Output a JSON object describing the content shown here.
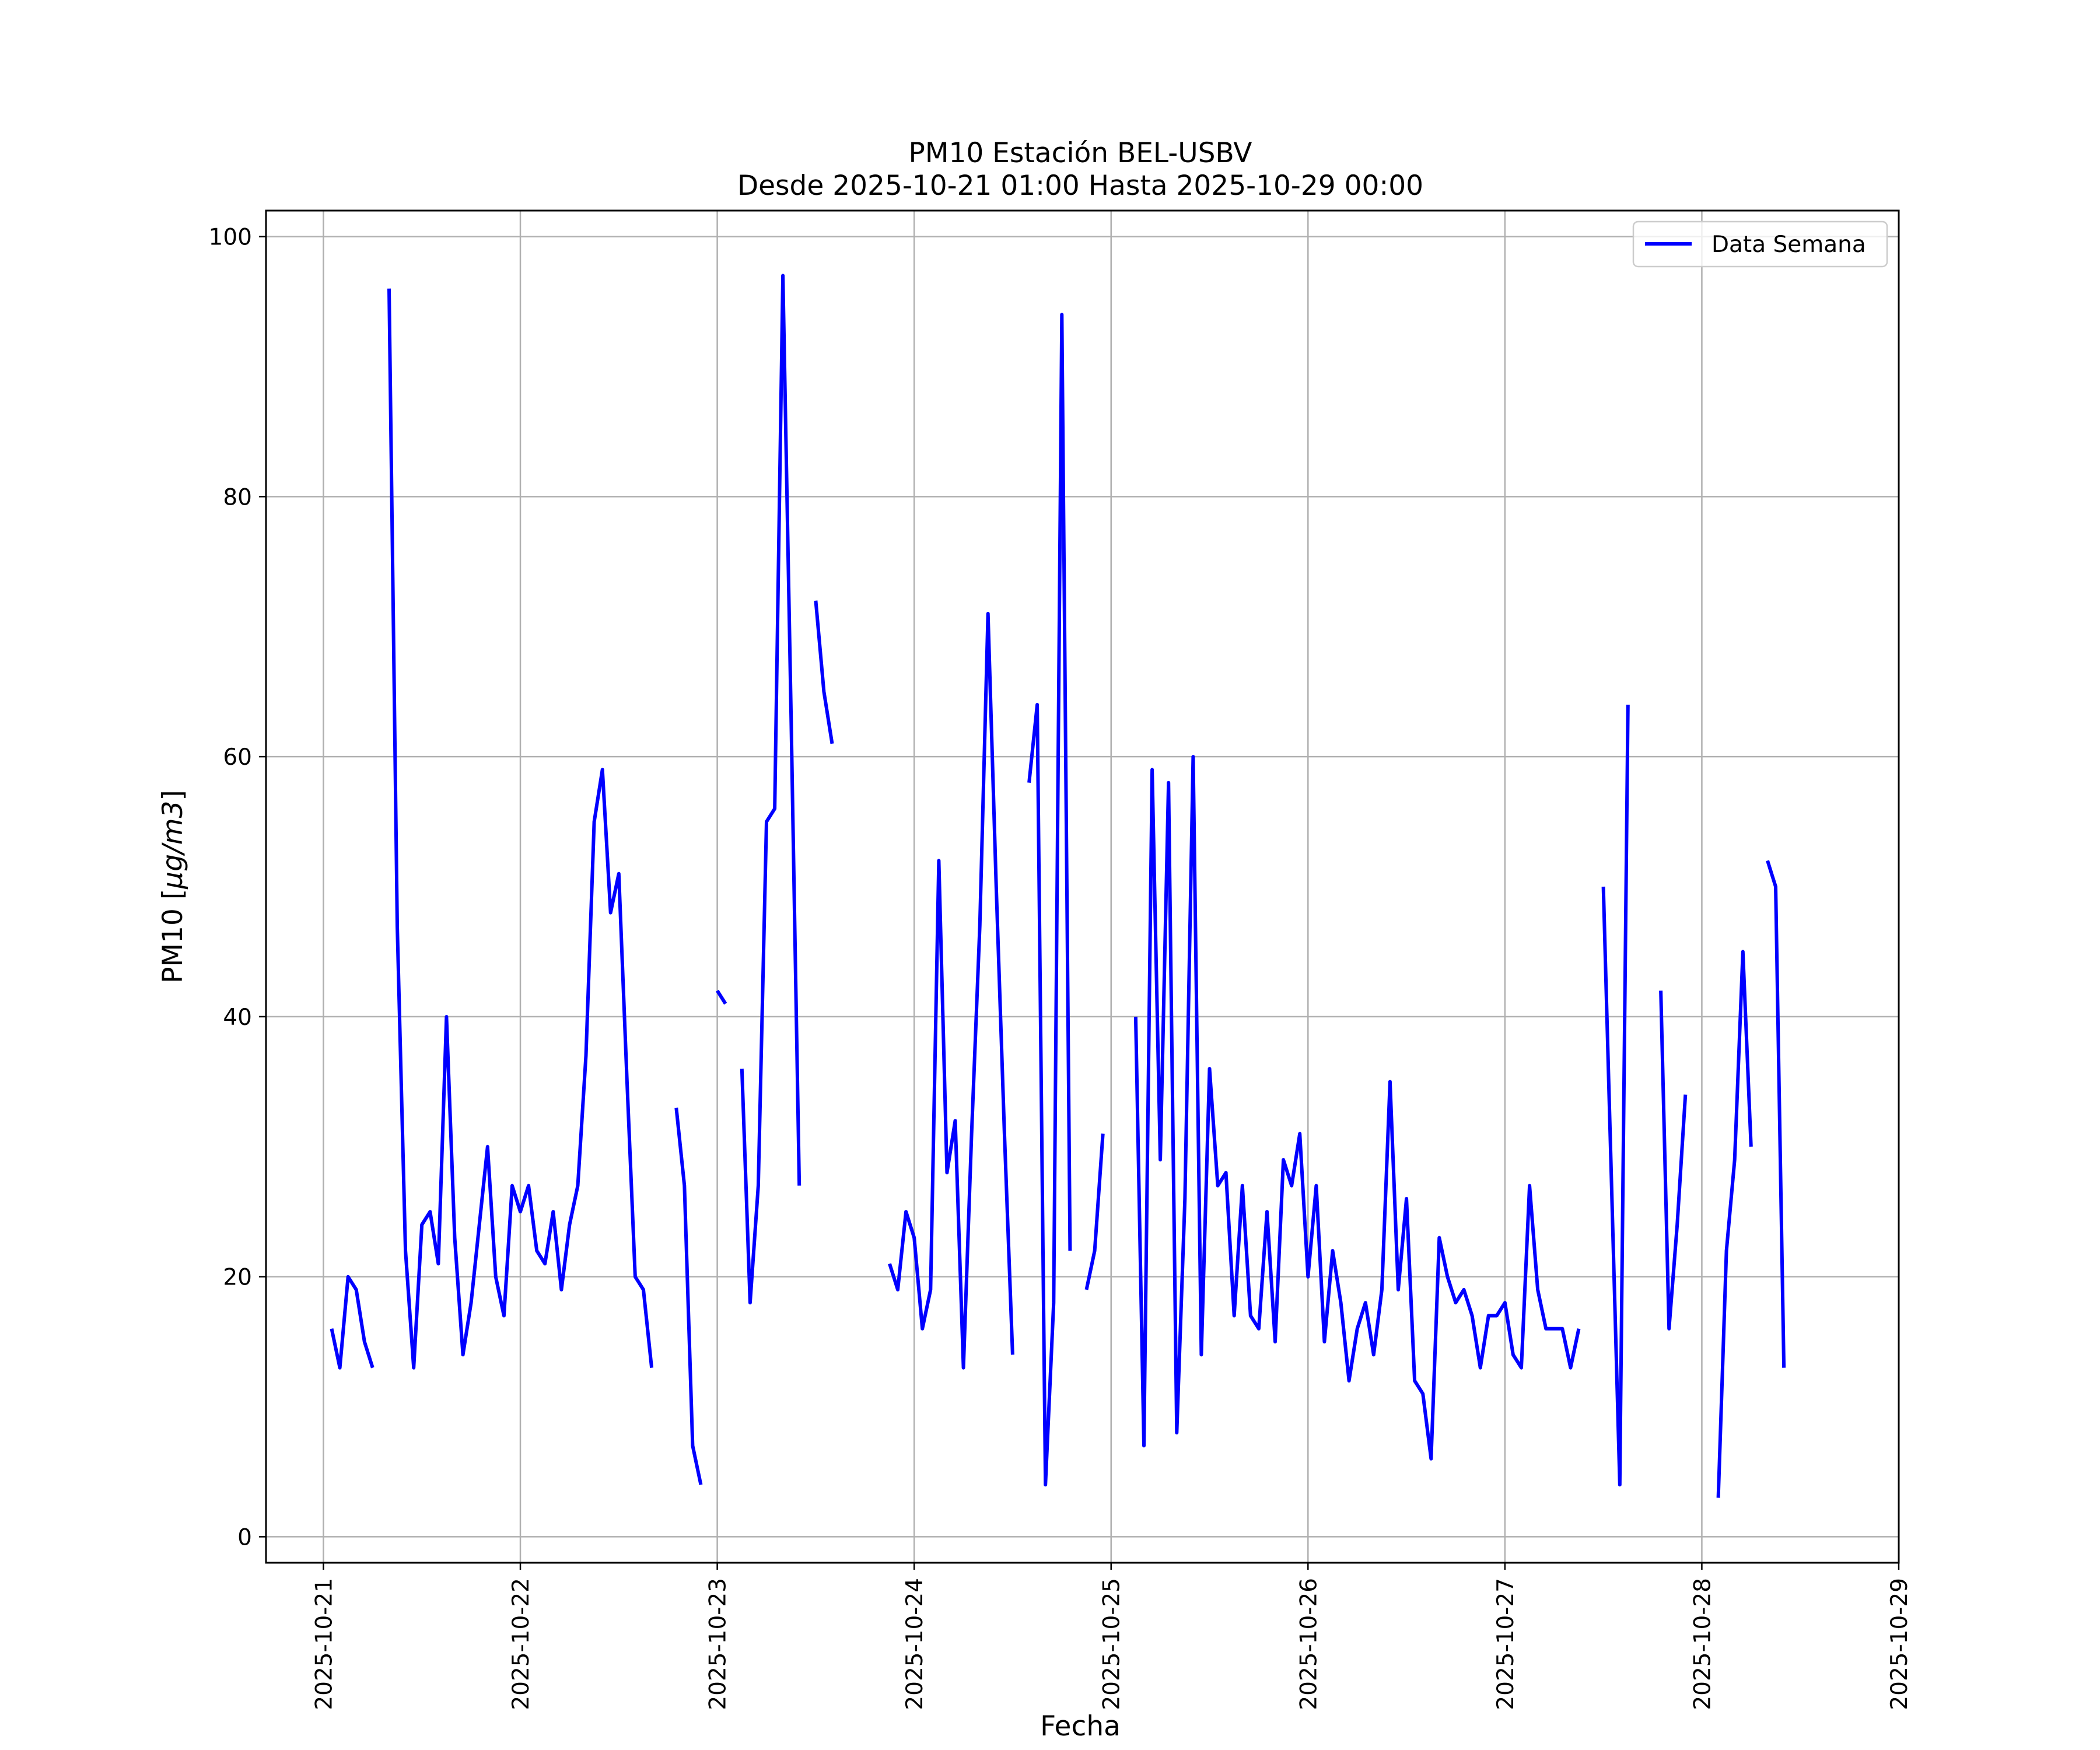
{
  "chart_data": {
    "type": "line",
    "title": "PM10 Estación BEL-USBV",
    "subtitle": "Desde 2025-10-21 01:00 Hasta 2025-10-29 00:00",
    "xlabel": "Fecha",
    "ylabel_prefix": "PM10 [",
    "ylabel_unit": "μg/m3",
    "ylabel_suffix": "]",
    "ylim": [
      -2,
      102
    ],
    "xlim": [
      "2025-10-20 17:00",
      "2025-10-29 00:00"
    ],
    "y_ticks": [
      "0",
      "20",
      "40",
      "60",
      "80",
      "100"
    ],
    "x_ticks": [
      "2025-10-21",
      "2025-10-22",
      "2025-10-23",
      "2025-10-24",
      "2025-10-25",
      "2025-10-26",
      "2025-10-27",
      "2025-10-28",
      "2025-10-29"
    ],
    "grid": true,
    "legend_position": "top-right",
    "colors": {
      "line": "#0000ff",
      "grid": "#b0b0b0",
      "axis": "#000000"
    },
    "series": [
      {
        "name": "Data Semana",
        "points": [
          [
            "2025-10-21 01:00",
            16
          ],
          [
            "2025-10-21 02:00",
            13
          ],
          [
            "2025-10-21 03:00",
            20
          ],
          [
            "2025-10-21 04:00",
            19
          ],
          [
            "2025-10-21 05:00",
            15
          ],
          [
            "2025-10-21 06:00",
            13
          ],
          [
            "2025-10-21 07:00",
            null
          ],
          [
            "2025-10-21 08:00",
            96
          ],
          [
            "2025-10-21 09:00",
            47
          ],
          [
            "2025-10-21 10:00",
            22
          ],
          [
            "2025-10-21 11:00",
            13
          ],
          [
            "2025-10-21 12:00",
            24
          ],
          [
            "2025-10-21 13:00",
            25
          ],
          [
            "2025-10-21 14:00",
            21
          ],
          [
            "2025-10-21 15:00",
            40
          ],
          [
            "2025-10-21 16:00",
            23
          ],
          [
            "2025-10-21 17:00",
            14
          ],
          [
            "2025-10-21 18:00",
            18
          ],
          [
            "2025-10-21 19:00",
            24
          ],
          [
            "2025-10-21 20:00",
            30
          ],
          [
            "2025-10-21 21:00",
            20
          ],
          [
            "2025-10-21 22:00",
            17
          ],
          [
            "2025-10-21 23:00",
            27
          ],
          [
            "2025-10-22 00:00",
            25
          ],
          [
            "2025-10-22 01:00",
            27
          ],
          [
            "2025-10-22 02:00",
            22
          ],
          [
            "2025-10-22 03:00",
            21
          ],
          [
            "2025-10-22 04:00",
            25
          ],
          [
            "2025-10-22 05:00",
            19
          ],
          [
            "2025-10-22 06:00",
            24
          ],
          [
            "2025-10-22 07:00",
            27
          ],
          [
            "2025-10-22 08:00",
            37
          ],
          [
            "2025-10-22 09:00",
            55
          ],
          [
            "2025-10-22 10:00",
            59
          ],
          [
            "2025-10-22 11:00",
            48
          ],
          [
            "2025-10-22 12:00",
            51
          ],
          [
            "2025-10-22 13:00",
            35
          ],
          [
            "2025-10-22 14:00",
            20
          ],
          [
            "2025-10-22 15:00",
            19
          ],
          [
            "2025-10-22 16:00",
            13
          ],
          [
            "2025-10-22 17:00",
            null
          ],
          [
            "2025-10-22 19:00",
            33
          ],
          [
            "2025-10-22 20:00",
            27
          ],
          [
            "2025-10-22 21:00",
            7
          ],
          [
            "2025-10-22 22:00",
            4
          ],
          [
            "2025-10-22 23:00",
            null
          ],
          [
            "2025-10-23 00:00",
            42
          ],
          [
            "2025-10-23 01:00",
            41
          ],
          [
            "2025-10-23 02:00",
            null
          ],
          [
            "2025-10-23 03:00",
            36
          ],
          [
            "2025-10-23 04:00",
            18
          ],
          [
            "2025-10-23 05:00",
            27
          ],
          [
            "2025-10-23 06:00",
            55
          ],
          [
            "2025-10-23 07:00",
            56
          ],
          [
            "2025-10-23 08:00",
            97
          ],
          [
            "2025-10-23 09:00",
            63
          ],
          [
            "2025-10-23 10:00",
            27
          ],
          [
            "2025-10-23 11:00",
            null
          ],
          [
            "2025-10-23 12:00",
            72
          ],
          [
            "2025-10-23 13:00",
            65
          ],
          [
            "2025-10-23 14:00",
            61
          ],
          [
            "2025-10-23 15:00",
            null
          ],
          [
            "2025-10-23 21:00",
            21
          ],
          [
            "2025-10-23 22:00",
            19
          ],
          [
            "2025-10-23 23:00",
            25
          ],
          [
            "2025-10-24 00:00",
            23
          ],
          [
            "2025-10-24 01:00",
            16
          ],
          [
            "2025-10-24 02:00",
            19
          ],
          [
            "2025-10-24 03:00",
            52
          ],
          [
            "2025-10-24 04:00",
            28
          ],
          [
            "2025-10-24 05:00",
            32
          ],
          [
            "2025-10-24 06:00",
            13
          ],
          [
            "2025-10-24 07:00",
            31
          ],
          [
            "2025-10-24 08:00",
            47
          ],
          [
            "2025-10-24 09:00",
            71
          ],
          [
            "2025-10-24 10:00",
            50
          ],
          [
            "2025-10-24 11:00",
            31
          ],
          [
            "2025-10-24 12:00",
            14
          ],
          [
            "2025-10-24 13:00",
            null
          ],
          [
            "2025-10-24 14:00",
            58
          ],
          [
            "2025-10-24 15:00",
            64
          ],
          [
            "2025-10-24 16:00",
            4
          ],
          [
            "2025-10-24 17:00",
            18
          ],
          [
            "2025-10-24 18:00",
            94
          ],
          [
            "2025-10-24 19:00",
            22
          ],
          [
            "2025-10-24 20:00",
            null
          ],
          [
            "2025-10-24 21:00",
            19
          ],
          [
            "2025-10-24 22:00",
            22
          ],
          [
            "2025-10-24 23:00",
            31
          ],
          [
            "2025-10-25 00:00",
            null
          ],
          [
            "2025-10-25 03:00",
            40
          ],
          [
            "2025-10-25 04:00",
            7
          ],
          [
            "2025-10-25 05:00",
            59
          ],
          [
            "2025-10-25 06:00",
            29
          ],
          [
            "2025-10-25 07:00",
            58
          ],
          [
            "2025-10-25 08:00",
            8
          ],
          [
            "2025-10-25 09:00",
            26
          ],
          [
            "2025-10-25 10:00",
            60
          ],
          [
            "2025-10-25 11:00",
            14
          ],
          [
            "2025-10-25 12:00",
            36
          ],
          [
            "2025-10-25 13:00",
            27
          ],
          [
            "2025-10-25 14:00",
            28
          ],
          [
            "2025-10-25 15:00",
            17
          ],
          [
            "2025-10-25 16:00",
            27
          ],
          [
            "2025-10-25 17:00",
            17
          ],
          [
            "2025-10-25 18:00",
            16
          ],
          [
            "2025-10-25 19:00",
            25
          ],
          [
            "2025-10-25 20:00",
            15
          ],
          [
            "2025-10-25 21:00",
            29
          ],
          [
            "2025-10-25 22:00",
            27
          ],
          [
            "2025-10-25 23:00",
            31
          ],
          [
            "2025-10-26 00:00",
            20
          ],
          [
            "2025-10-26 01:00",
            27
          ],
          [
            "2025-10-26 02:00",
            15
          ],
          [
            "2025-10-26 03:00",
            22
          ],
          [
            "2025-10-26 04:00",
            18
          ],
          [
            "2025-10-26 05:00",
            12
          ],
          [
            "2025-10-26 06:00",
            16
          ],
          [
            "2025-10-26 07:00",
            18
          ],
          [
            "2025-10-26 08:00",
            14
          ],
          [
            "2025-10-26 09:00",
            19
          ],
          [
            "2025-10-26 10:00",
            35
          ],
          [
            "2025-10-26 11:00",
            19
          ],
          [
            "2025-10-26 12:00",
            26
          ],
          [
            "2025-10-26 13:00",
            12
          ],
          [
            "2025-10-26 14:00",
            11
          ],
          [
            "2025-10-26 15:00",
            6
          ],
          [
            "2025-10-26 16:00",
            23
          ],
          [
            "2025-10-26 17:00",
            20
          ],
          [
            "2025-10-26 18:00",
            18
          ],
          [
            "2025-10-26 19:00",
            19
          ],
          [
            "2025-10-26 20:00",
            17
          ],
          [
            "2025-10-26 21:00",
            13
          ],
          [
            "2025-10-26 22:00",
            17
          ],
          [
            "2025-10-26 23:00",
            17
          ],
          [
            "2025-10-27 00:00",
            18
          ],
          [
            "2025-10-27 01:00",
            14
          ],
          [
            "2025-10-27 02:00",
            13
          ],
          [
            "2025-10-27 03:00",
            27
          ],
          [
            "2025-10-27 04:00",
            19
          ],
          [
            "2025-10-27 05:00",
            16
          ],
          [
            "2025-10-27 06:00",
            16
          ],
          [
            "2025-10-27 07:00",
            16
          ],
          [
            "2025-10-27 08:00",
            13
          ],
          [
            "2025-10-27 09:00",
            16
          ],
          [
            "2025-10-27 10:00",
            null
          ],
          [
            "2025-10-27 12:00",
            50
          ],
          [
            "2025-10-27 13:00",
            27
          ],
          [
            "2025-10-27 14:00",
            4
          ],
          [
            "2025-10-27 15:00",
            64
          ],
          [
            "2025-10-27 16:00",
            null
          ],
          [
            "2025-10-27 19:00",
            42
          ],
          [
            "2025-10-27 20:00",
            16
          ],
          [
            "2025-10-27 21:00",
            24
          ],
          [
            "2025-10-27 22:00",
            34
          ],
          [
            "2025-10-27 23:00",
            null
          ],
          [
            "2025-10-28 02:00",
            3
          ],
          [
            "2025-10-28 03:00",
            22
          ],
          [
            "2025-10-28 04:00",
            29
          ],
          [
            "2025-10-28 05:00",
            45
          ],
          [
            "2025-10-28 06:00",
            30
          ],
          [
            "2025-10-28 07:00",
            null
          ],
          [
            "2025-10-28 08:00",
            52
          ],
          [
            "2025-10-28 09:00",
            50
          ],
          [
            "2025-10-28 10:00",
            13
          ]
        ]
      }
    ]
  }
}
